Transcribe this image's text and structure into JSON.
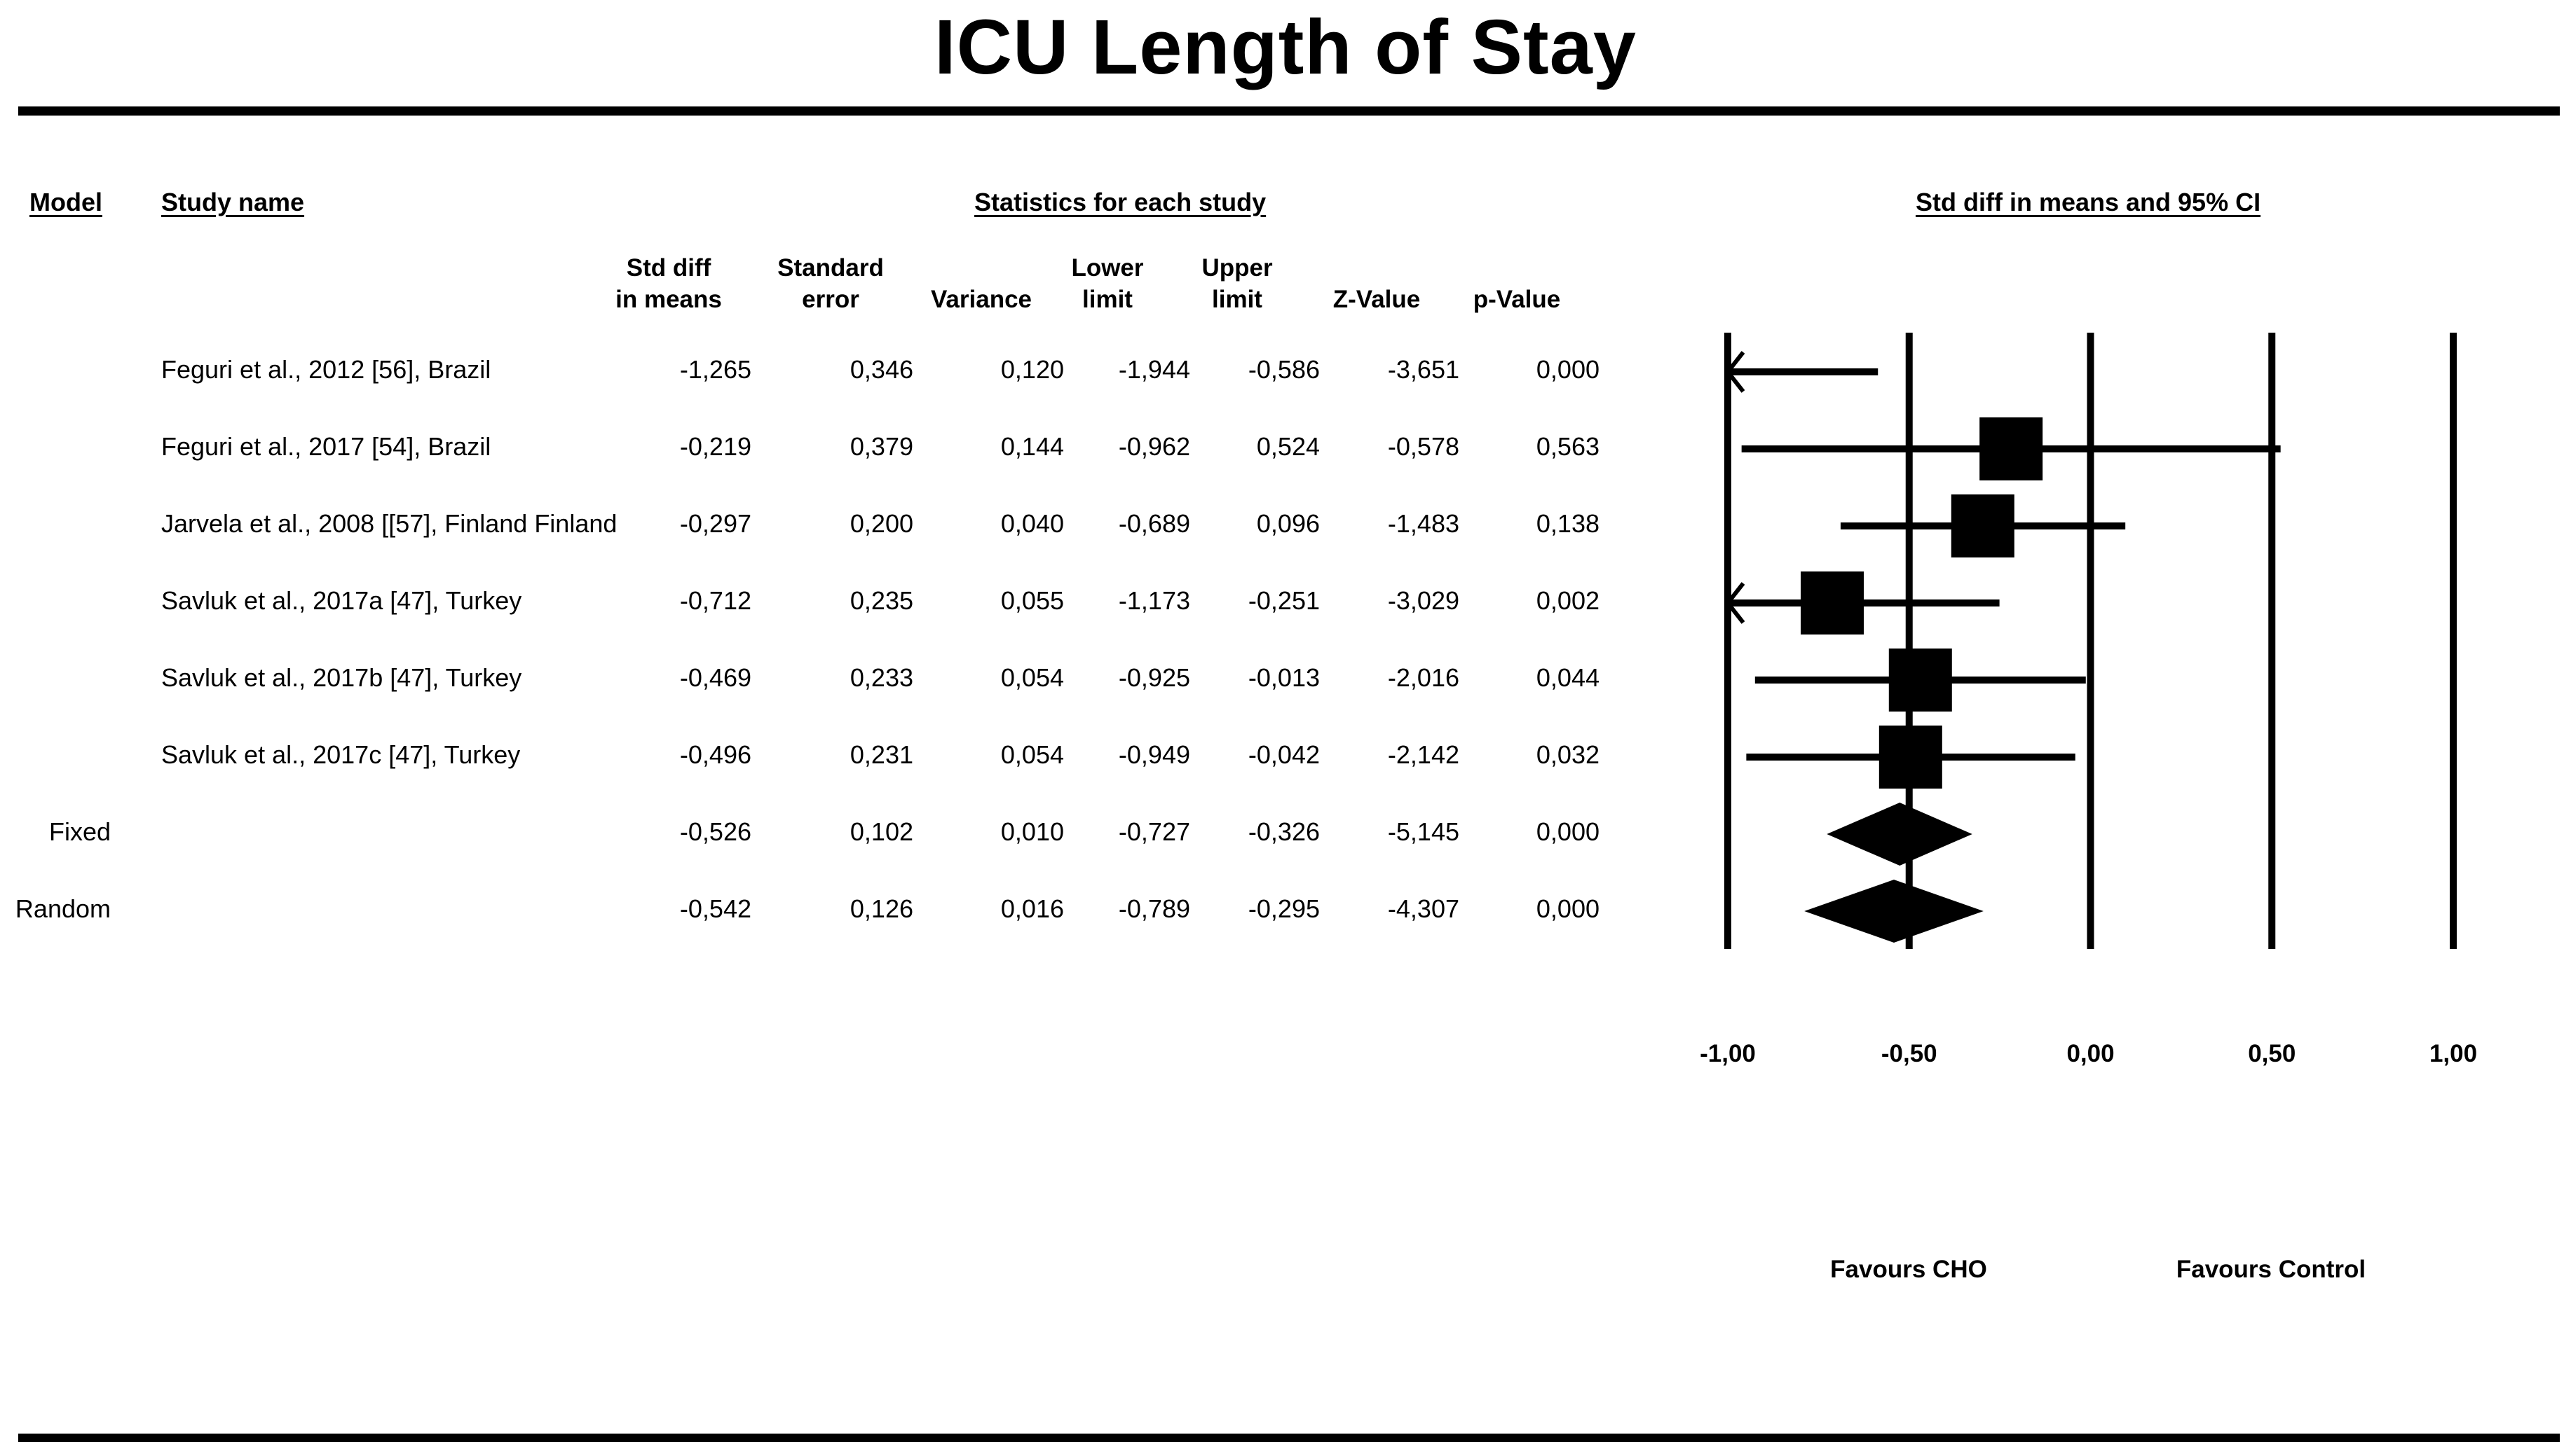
{
  "title": "ICU Length of Stay",
  "headers": {
    "model": "Model",
    "study_name": "Study name",
    "statistics": "Statistics for each study",
    "plot": "Std diff in means and 95% CI"
  },
  "columns": [
    {
      "key": "std_diff",
      "label": "Std diff\nin means"
    },
    {
      "key": "se",
      "label": "Standard\nerror"
    },
    {
      "key": "variance",
      "label": "Variance"
    },
    {
      "key": "lower",
      "label": "Lower\nlimit"
    },
    {
      "key": "upper",
      "label": "Upper\nlimit"
    },
    {
      "key": "z",
      "label": "Z-Value"
    },
    {
      "key": "p",
      "label": "p-Value"
    }
  ],
  "rows": [
    {
      "model": "",
      "study": "Feguri et al., 2012 [56], Brazil",
      "std_diff": "-1,265",
      "se": "0,346",
      "variance": "0,120",
      "lower": "-1,944",
      "upper": "-0,586",
      "z": "-3,651",
      "p": "0,000"
    },
    {
      "model": "",
      "study": "Feguri et al., 2017 [54], Brazil",
      "std_diff": "-0,219",
      "se": "0,379",
      "variance": "0,144",
      "lower": "-0,962",
      "upper": "0,524",
      "z": "-0,578",
      "p": "0,563"
    },
    {
      "model": "",
      "study": "Jarvela et al., 2008 [[57], Finland Finland",
      "std_diff": "-0,297",
      "se": "0,200",
      "variance": "0,040",
      "lower": "-0,689",
      "upper": "0,096",
      "z": "-1,483",
      "p": "0,138"
    },
    {
      "model": "",
      "study": "Savluk et al., 2017a [47], Turkey",
      "std_diff": "-0,712",
      "se": "0,235",
      "variance": "0,055",
      "lower": "-1,173",
      "upper": "-0,251",
      "z": "-3,029",
      "p": "0,002"
    },
    {
      "model": "",
      "study": "Savluk et al., 2017b [47], Turkey",
      "std_diff": "-0,469",
      "se": "0,233",
      "variance": "0,054",
      "lower": "-0,925",
      "upper": "-0,013",
      "z": "-2,016",
      "p": "0,044"
    },
    {
      "model": "",
      "study": "Savluk et al., 2017c [47], Turkey",
      "std_diff": "-0,496",
      "se": "0,231",
      "variance": "0,054",
      "lower": "-0,949",
      "upper": "-0,042",
      "z": "-2,142",
      "p": "0,032"
    },
    {
      "model": "Fixed",
      "study": "",
      "std_diff": "-0,526",
      "se": "0,102",
      "variance": "0,010",
      "lower": "-0,727",
      "upper": "-0,326",
      "z": "-5,145",
      "p": "0,000"
    },
    {
      "model": "Random",
      "study": "",
      "std_diff": "-0,542",
      "se": "0,126",
      "variance": "0,016",
      "lower": "-0,789",
      "upper": "-0,295",
      "z": "-4,307",
      "p": "0,000"
    }
  ],
  "chart_data": {
    "type": "forest",
    "title": "Std diff in means and 95% CI",
    "xlim": [
      -1,
      1
    ],
    "xticks": [
      -1,
      -0.5,
      0,
      0.5,
      1
    ],
    "xtick_labels": [
      "-1,00",
      "-0,50",
      "0,00",
      "0,50",
      "1,00"
    ],
    "favours_left": "Favours CHO",
    "favours_right": "Favours Control",
    "studies": [
      {
        "estimate": -1.265,
        "lower": -1.944,
        "upper": -0.586,
        "weight": 0.0
      },
      {
        "estimate": -0.219,
        "lower": -0.962,
        "upper": 0.524,
        "weight": 0.7
      },
      {
        "estimate": -0.297,
        "lower": -0.689,
        "upper": 0.096,
        "weight": 0.8
      },
      {
        "estimate": -0.712,
        "lower": -1.173,
        "upper": -0.251,
        "weight": 0.8
      },
      {
        "estimate": -0.469,
        "lower": -0.925,
        "upper": -0.013,
        "weight": 0.8
      },
      {
        "estimate": -0.496,
        "lower": -0.949,
        "upper": -0.042,
        "weight": 0.8
      }
    ],
    "summaries": [
      {
        "estimate": -0.526,
        "lower": -0.727,
        "upper": -0.326
      },
      {
        "estimate": -0.542,
        "lower": -0.789,
        "upper": -0.295
      }
    ]
  }
}
